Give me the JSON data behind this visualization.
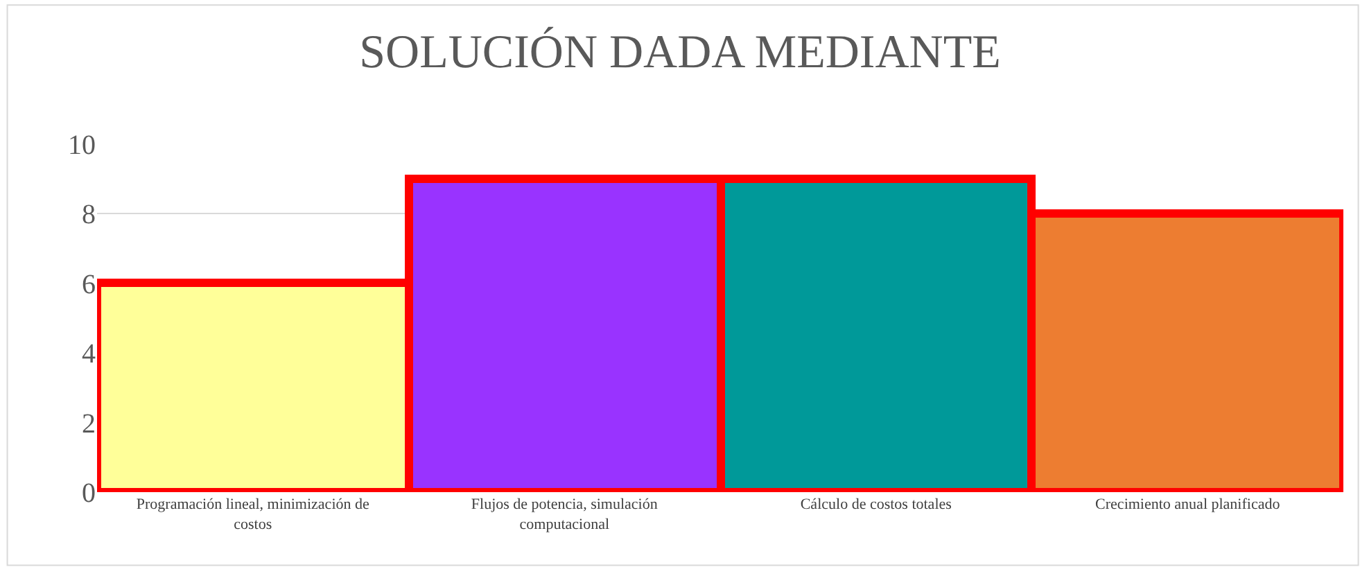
{
  "chart_data": {
    "type": "bar",
    "title": "SOLUCIÓN DADA MEDIANTE",
    "categories": [
      "Programación lineal, minimización de costos",
      "Flujos de potencia, simulación computacional",
      "Cálculo de costos totales",
      "Crecimiento anual planificado"
    ],
    "values": [
      6,
      9,
      9,
      8
    ],
    "colors": [
      "#ffff99",
      "#9933ff",
      "#009999",
      "#ed7d31"
    ],
    "ylim": [
      0,
      10
    ],
    "yticks": [
      0,
      2,
      4,
      6,
      8,
      10
    ],
    "grid": "y"
  }
}
